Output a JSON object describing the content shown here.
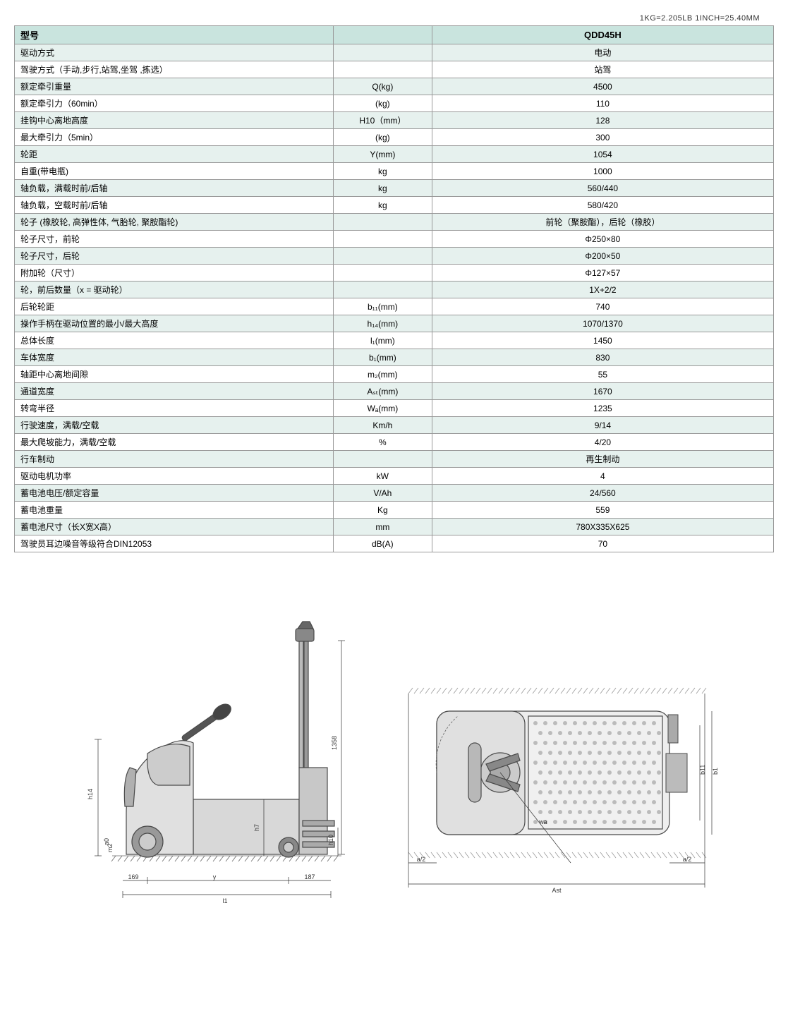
{
  "unit_note": "1KG=2.205LB    1INCH=25.40MM",
  "header": {
    "label": "型号",
    "unit": "",
    "value": "QDD45H"
  },
  "rows": [
    {
      "shade": true,
      "label": "驱动方式",
      "unit": "",
      "value": "电动"
    },
    {
      "shade": false,
      "label": "驾驶方式（手动,步行,站驾,坐驾 ,拣选）",
      "unit": "",
      "value": "站驾"
    },
    {
      "shade": true,
      "label": "额定牵引重量",
      "unit": "Q(kg)",
      "value": "4500"
    },
    {
      "shade": false,
      "label": "额定牵引力（60min）",
      "unit": "(kg)",
      "value": "110"
    },
    {
      "shade": true,
      "label": "挂钩中心离地高度",
      "unit": "H10（mm）",
      "value": "128"
    },
    {
      "shade": false,
      "label": "最大牵引力（5min）",
      "unit": "(kg)",
      "value": "300"
    },
    {
      "shade": true,
      "label": "轮距",
      "unit": "Y(mm)",
      "value": "1054"
    },
    {
      "shade": false,
      "label": "自重(带电瓶)",
      "unit": "kg",
      "value": "1000"
    },
    {
      "shade": true,
      "label": "轴负载，满载时前/后轴",
      "unit": "kg",
      "value": "560/440"
    },
    {
      "shade": false,
      "label": "轴负载，空载时前/后轴",
      "unit": "kg",
      "value": "580/420"
    },
    {
      "shade": true,
      "label": "轮子 (橡胶轮, 高弹性体, 气胎轮, 聚胺酯轮)",
      "unit": "",
      "value": "前轮（聚胺酯），后轮（橡胶）"
    },
    {
      "shade": false,
      "label": "轮子尺寸，前轮",
      "unit": "",
      "value": "Φ250×80"
    },
    {
      "shade": true,
      "label": "轮子尺寸，后轮",
      "unit": "",
      "value": "Φ200×50"
    },
    {
      "shade": false,
      "label": "附加轮（尺寸）",
      "unit": "",
      "value": "Φ127×57"
    },
    {
      "shade": true,
      "label": "轮，前后数量（x = 驱动轮）",
      "unit": "",
      "value": "1X+2/2"
    },
    {
      "shade": false,
      "label": "后轮轮距",
      "unit": "b₁₁(mm)",
      "value": "740"
    },
    {
      "shade": true,
      "label": "操作手柄在驱动位置的最小/最大高度",
      "unit": "h₁₄(mm)",
      "value": "1070/1370"
    },
    {
      "shade": false,
      "label": "总体长度",
      "unit": "l₁(mm)",
      "value": "1450"
    },
    {
      "shade": true,
      "label": "车体宽度",
      "unit": "b₁(mm)",
      "value": "830"
    },
    {
      "shade": false,
      "label": "轴距中心离地间隙",
      "unit": "m₂(mm)",
      "value": "55"
    },
    {
      "shade": true,
      "label": "通道宽度",
      "unit": "Aₛₜ(mm)",
      "value": "1670"
    },
    {
      "shade": false,
      "label": "转弯半径",
      "unit": "Wₐ(mm)",
      "value": "1235"
    },
    {
      "shade": true,
      "label": "行驶速度，满载/空载",
      "unit": "Km/h",
      "value": "9/14"
    },
    {
      "shade": false,
      "label": "最大爬坡能力，满载/空载",
      "unit": "%",
      "value": "4/20"
    },
    {
      "shade": true,
      "label": "行车制动",
      "unit": "",
      "value": "再生制动"
    },
    {
      "shade": false,
      "label": "驱动电机功率",
      "unit": "kW",
      "value": "4"
    },
    {
      "shade": true,
      "label": "蓄电池电压/额定容量",
      "unit": "V/Ah",
      "value": "24/560"
    },
    {
      "shade": false,
      "label": "蓄电池重量",
      "unit": "Kg",
      "value": "559"
    },
    {
      "shade": true,
      "label": "蓄电池尺寸（长X宽X高）",
      "unit": "mm",
      "value": "780X335X625"
    },
    {
      "shade": false,
      "label": "驾驶员耳边噪音等级符合DIN12053",
      "unit": "dB(A)",
      "value": "70"
    }
  ],
  "diagram_side": {
    "dims": {
      "l1": "l1",
      "y": "y",
      "left_ext": "169",
      "right_ext": "187",
      "h14": "h14",
      "h7": "h7",
      "h10": "h10",
      "m2": "m2",
      "height_1358": "1358",
      "a0": "a0"
    },
    "colors": {
      "outline": "#4a4a4a",
      "fill_light": "#e8e8e8",
      "fill_mid": "#c0c0c0",
      "fill_dark": "#888",
      "ground_hatch": "#666"
    }
  },
  "diagram_top": {
    "dims": {
      "ast": "Ast",
      "a2_left": "a/2",
      "a2_right": "a/2",
      "wa": "wa",
      "b1": "b1",
      "b11": "b11"
    },
    "colors": {
      "outline": "#4a4a4a",
      "fill_light": "#e8e8e8",
      "fill_mid": "#c0c0c0",
      "hatch": "#999"
    }
  }
}
